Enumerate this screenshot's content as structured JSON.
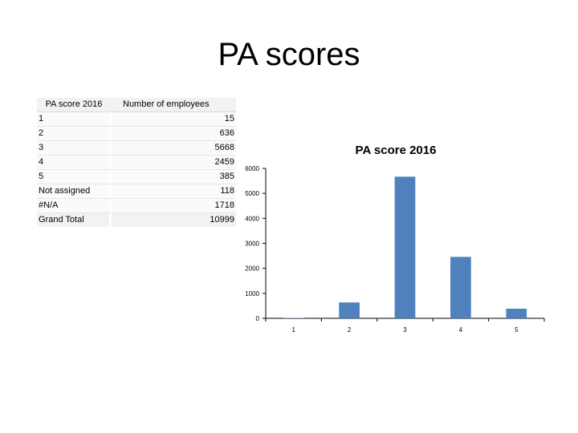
{
  "slide": {
    "title": "PA scores"
  },
  "pivot_table": {
    "headers": [
      "PA score 2016",
      "Number of employees"
    ],
    "rows": [
      {
        "label": "1",
        "value": "15"
      },
      {
        "label": "2",
        "value": "636"
      },
      {
        "label": "3",
        "value": "5668"
      },
      {
        "label": "4",
        "value": "2459"
      },
      {
        "label": "5",
        "value": "385"
      },
      {
        "label": "Not assigned",
        "value": "118"
      },
      {
        "label": "#N/A",
        "value": "1718"
      }
    ],
    "total": {
      "label": "Grand Total",
      "value": "10999"
    }
  },
  "chart_data": {
    "type": "bar",
    "title": "PA score 2016",
    "categories": [
      "1",
      "2",
      "3",
      "4",
      "5"
    ],
    "values": [
      15,
      636,
      5668,
      2459,
      385
    ],
    "ylim": [
      0,
      6000
    ],
    "yticks": [
      0,
      1000,
      2000,
      3000,
      4000,
      5000,
      6000
    ],
    "xlabel": "",
    "ylabel": "",
    "grid": false,
    "legend": "none",
    "bar_color": "#4f81bd"
  }
}
